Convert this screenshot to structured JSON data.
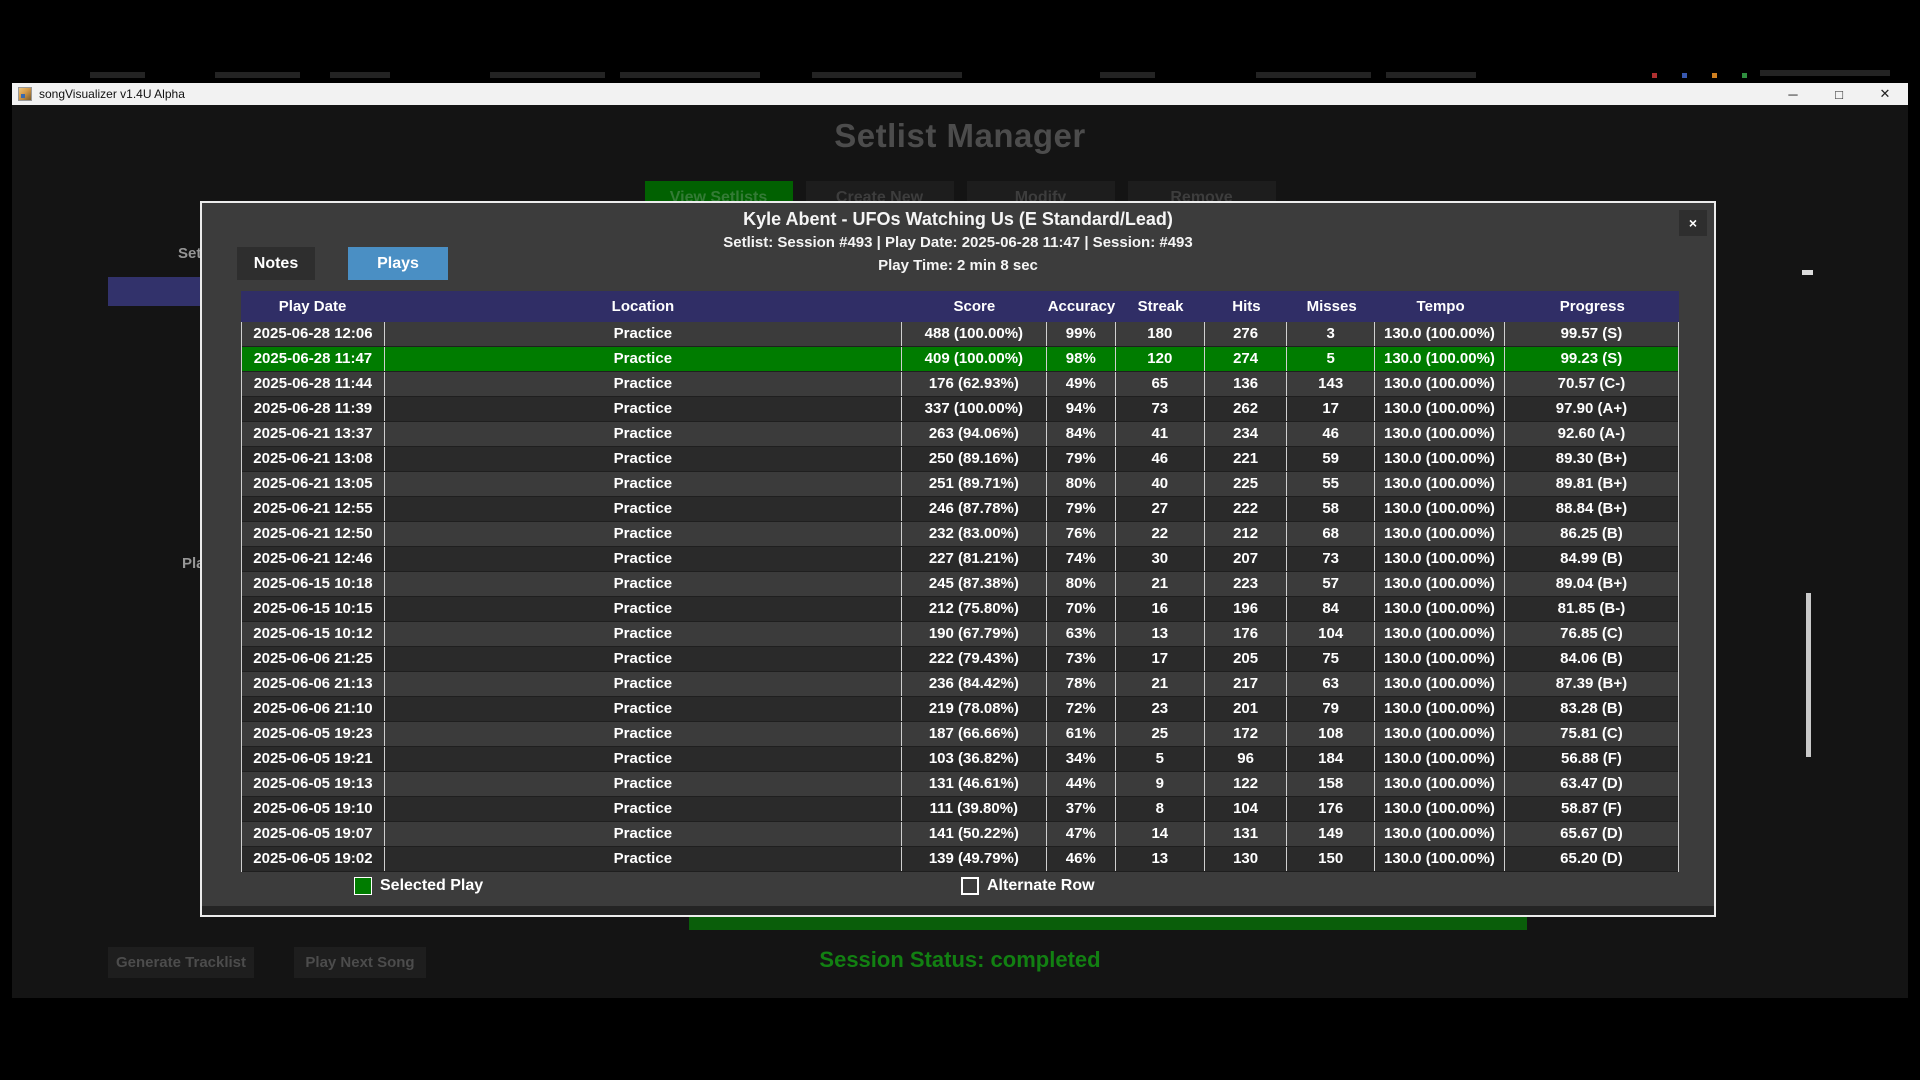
{
  "window": {
    "title": "songVisualizer v1.4U Alpha",
    "controls": {
      "minimize": "─",
      "maximize": "□",
      "close": "✕"
    }
  },
  "background": {
    "page_title": "Setlist Manager",
    "toolbar": [
      {
        "label": "View Setlists",
        "active": true
      },
      {
        "label": "Create New",
        "active": false
      },
      {
        "label": "Modify",
        "active": false
      },
      {
        "label": "Remove",
        "active": false
      }
    ],
    "fragments": {
      "setlists_label": "Setlists",
      "plays_label": "Plays"
    },
    "footer": {
      "generate_button": "Generate Tracklist",
      "play_next_button": "Play Next Song",
      "session_status": "Session Status: completed"
    }
  },
  "modal": {
    "close_label": "×",
    "title": "Kyle Abent - UFOs Watching Us (E Standard/Lead)",
    "subtitle": "Setlist: Session #493 | Play Date: 2025-06-28 11:47 | Session: #493",
    "play_time": "Play Time: 2 min 8 sec",
    "tabs": [
      {
        "label": "Notes",
        "active": false
      },
      {
        "label": "Plays",
        "active": true
      }
    ],
    "legend": [
      {
        "label": "Selected Play",
        "color": "#007c00"
      },
      {
        "label": "Alternate Row",
        "color": "#ffffff"
      }
    ],
    "table": {
      "columns": [
        "Play Date",
        "Location",
        "Score",
        "Accuracy",
        "Streak",
        "Hits",
        "Misses",
        "Tempo",
        "Progress"
      ],
      "selected_row_index": 1,
      "rows": [
        [
          "2025-06-28 12:06",
          "Practice",
          "488 (100.00%)",
          "99%",
          "180",
          "276",
          "3",
          "130.0 (100.00%)",
          "99.57 (S)"
        ],
        [
          "2025-06-28 11:47",
          "Practice",
          "409 (100.00%)",
          "98%",
          "120",
          "274",
          "5",
          "130.0 (100.00%)",
          "99.23 (S)"
        ],
        [
          "2025-06-28 11:44",
          "Practice",
          "176 (62.93%)",
          "49%",
          "65",
          "136",
          "143",
          "130.0 (100.00%)",
          "70.57 (C-)"
        ],
        [
          "2025-06-28 11:39",
          "Practice",
          "337 (100.00%)",
          "94%",
          "73",
          "262",
          "17",
          "130.0 (100.00%)",
          "97.90 (A+)"
        ],
        [
          "2025-06-21 13:37",
          "Practice",
          "263 (94.06%)",
          "84%",
          "41",
          "234",
          "46",
          "130.0 (100.00%)",
          "92.60 (A-)"
        ],
        [
          "2025-06-21 13:08",
          "Practice",
          "250 (89.16%)",
          "79%",
          "46",
          "221",
          "59",
          "130.0 (100.00%)",
          "89.30 (B+)"
        ],
        [
          "2025-06-21 13:05",
          "Practice",
          "251 (89.71%)",
          "80%",
          "40",
          "225",
          "55",
          "130.0 (100.00%)",
          "89.81 (B+)"
        ],
        [
          "2025-06-21 12:55",
          "Practice",
          "246 (87.78%)",
          "79%",
          "27",
          "222",
          "58",
          "130.0 (100.00%)",
          "88.84 (B+)"
        ],
        [
          "2025-06-21 12:50",
          "Practice",
          "232 (83.00%)",
          "76%",
          "22",
          "212",
          "68",
          "130.0 (100.00%)",
          "86.25 (B)"
        ],
        [
          "2025-06-21 12:46",
          "Practice",
          "227 (81.21%)",
          "74%",
          "30",
          "207",
          "73",
          "130.0 (100.00%)",
          "84.99 (B)"
        ],
        [
          "2025-06-15 10:18",
          "Practice",
          "245 (87.38%)",
          "80%",
          "21",
          "223",
          "57",
          "130.0 (100.00%)",
          "89.04 (B+)"
        ],
        [
          "2025-06-15 10:15",
          "Practice",
          "212 (75.80%)",
          "70%",
          "16",
          "196",
          "84",
          "130.0 (100.00%)",
          "81.85 (B-)"
        ],
        [
          "2025-06-15 10:12",
          "Practice",
          "190 (67.79%)",
          "63%",
          "13",
          "176",
          "104",
          "130.0 (100.00%)",
          "76.85 (C)"
        ],
        [
          "2025-06-06 21:25",
          "Practice",
          "222 (79.43%)",
          "73%",
          "17",
          "205",
          "75",
          "130.0 (100.00%)",
          "84.06 (B)"
        ],
        [
          "2025-06-06 21:13",
          "Practice",
          "236 (84.42%)",
          "78%",
          "21",
          "217",
          "63",
          "130.0 (100.00%)",
          "87.39 (B+)"
        ],
        [
          "2025-06-06 21:10",
          "Practice",
          "219 (78.08%)",
          "72%",
          "23",
          "201",
          "79",
          "130.0 (100.00%)",
          "83.28 (B)"
        ],
        [
          "2025-06-05 19:23",
          "Practice",
          "187 (66.66%)",
          "61%",
          "25",
          "172",
          "108",
          "130.0 (100.00%)",
          "75.81 (C)"
        ],
        [
          "2025-06-05 19:21",
          "Practice",
          "103 (36.82%)",
          "34%",
          "5",
          "96",
          "184",
          "130.0 (100.00%)",
          "56.88 (F)"
        ],
        [
          "2025-06-05 19:13",
          "Practice",
          "131 (46.61%)",
          "44%",
          "9",
          "122",
          "158",
          "130.0 (100.00%)",
          "63.47 (D)"
        ],
        [
          "2025-06-05 19:10",
          "Practice",
          "111 (39.80%)",
          "37%",
          "8",
          "104",
          "176",
          "130.0 (100.00%)",
          "58.87 (F)"
        ],
        [
          "2025-06-05 19:07",
          "Practice",
          "141 (50.22%)",
          "47%",
          "14",
          "131",
          "149",
          "130.0 (100.00%)",
          "65.67 (D)"
        ],
        [
          "2025-06-05 19:02",
          "Practice",
          "139 (49.79%)",
          "46%",
          "13",
          "130",
          "150",
          "130.0 (100.00%)",
          "65.20 (D)"
        ]
      ]
    }
  },
  "colors": {
    "selected_row": "#007c00",
    "table_header_bg": "#302e66",
    "active_tab": "#4a8fc4",
    "status_green": "#128012",
    "titlebar_bg": "#f2f2f2"
  }
}
